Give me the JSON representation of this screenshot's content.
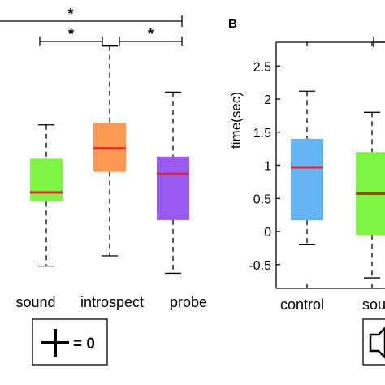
{
  "chart_data": [
    {
      "type": "box",
      "panel": "A",
      "categories": [
        "sound",
        "introspect",
        "probe"
      ],
      "colors": [
        "#7cf545",
        "#fd9b55",
        "#9a5af2"
      ],
      "median_color": "#e8202a",
      "boxes": [
        {
          "whislo": -0.1,
          "q1": 0.53,
          "med": 0.62,
          "q3": 0.95,
          "whishi": 1.28
        },
        {
          "whislo": 0.0,
          "q1": 0.82,
          "med": 1.05,
          "q3": 1.3,
          "whishi": 2.05
        },
        {
          "whislo": -0.17,
          "q1": 0.35,
          "med": 0.8,
          "q3": 0.97,
          "whishi": 1.6
        }
      ],
      "significance": [
        {
          "label": "*",
          "from": "sound",
          "to": "probe"
        },
        {
          "label": "*",
          "from": "sound",
          "to": "introspect"
        },
        {
          "label": "*",
          "from": "introspect",
          "to": "probe"
        }
      ],
      "key_label": "= 0"
    },
    {
      "type": "box",
      "panel": "B",
      "panel_label": "B",
      "ylabel": "time(sec)",
      "ylim": [
        -0.75,
        2.75
      ],
      "yticks": [
        -0.5,
        0,
        0.5,
        1,
        1.5,
        2,
        2.5
      ],
      "ytick_labels": [
        "-0.5",
        "0",
        "0.5",
        "1",
        "1.5",
        "2",
        "2.5"
      ],
      "categories": [
        "control",
        "sound"
      ],
      "category_labels": [
        "control",
        "sounc"
      ],
      "colors": [
        "#64b5f6",
        "#7cf545"
      ],
      "median_color": "#e8202a",
      "boxes": [
        {
          "whislo": -0.2,
          "q1": 0.17,
          "med": 0.97,
          "q3": 1.4,
          "whishi": 2.12
        },
        {
          "whislo": -0.7,
          "q1": -0.05,
          "med": 0.57,
          "q3": 1.2,
          "whishi": 1.8
        }
      ]
    }
  ]
}
